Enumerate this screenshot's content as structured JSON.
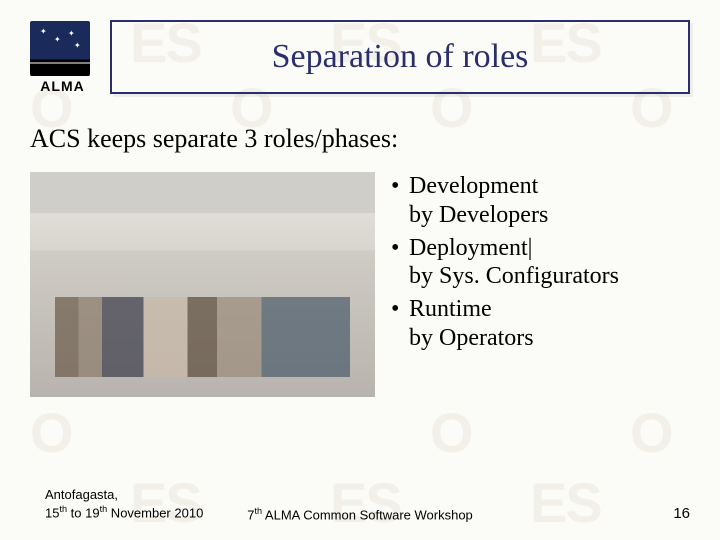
{
  "watermarks": {
    "text1": "ES",
    "text2": "O"
  },
  "logo": {
    "label": "ALMA"
  },
  "title": "Separation of roles",
  "subtitle": "ACS keeps separate 3 roles/phases:",
  "bullets": [
    {
      "line1": "Development",
      "line2": "by Developers"
    },
    {
      "line1": "Deployment|",
      "line2": "by Sys. Configurators"
    },
    {
      "line1": "Runtime",
      "line2": "by Operators"
    }
  ],
  "footer": {
    "location": "Antofagasta,",
    "dates_html": "15<sup>th</sup> to 19<sup>th</sup> November 2010",
    "center_html": "7<sup>th</sup> ALMA Common Software Workshop",
    "page": "16"
  },
  "colors": {
    "title_border": "#2a2f6b",
    "title_text": "#2a2f6b",
    "body_text": "#000000",
    "background": "#fbfbf8",
    "watermark": "#f2f0e8"
  }
}
